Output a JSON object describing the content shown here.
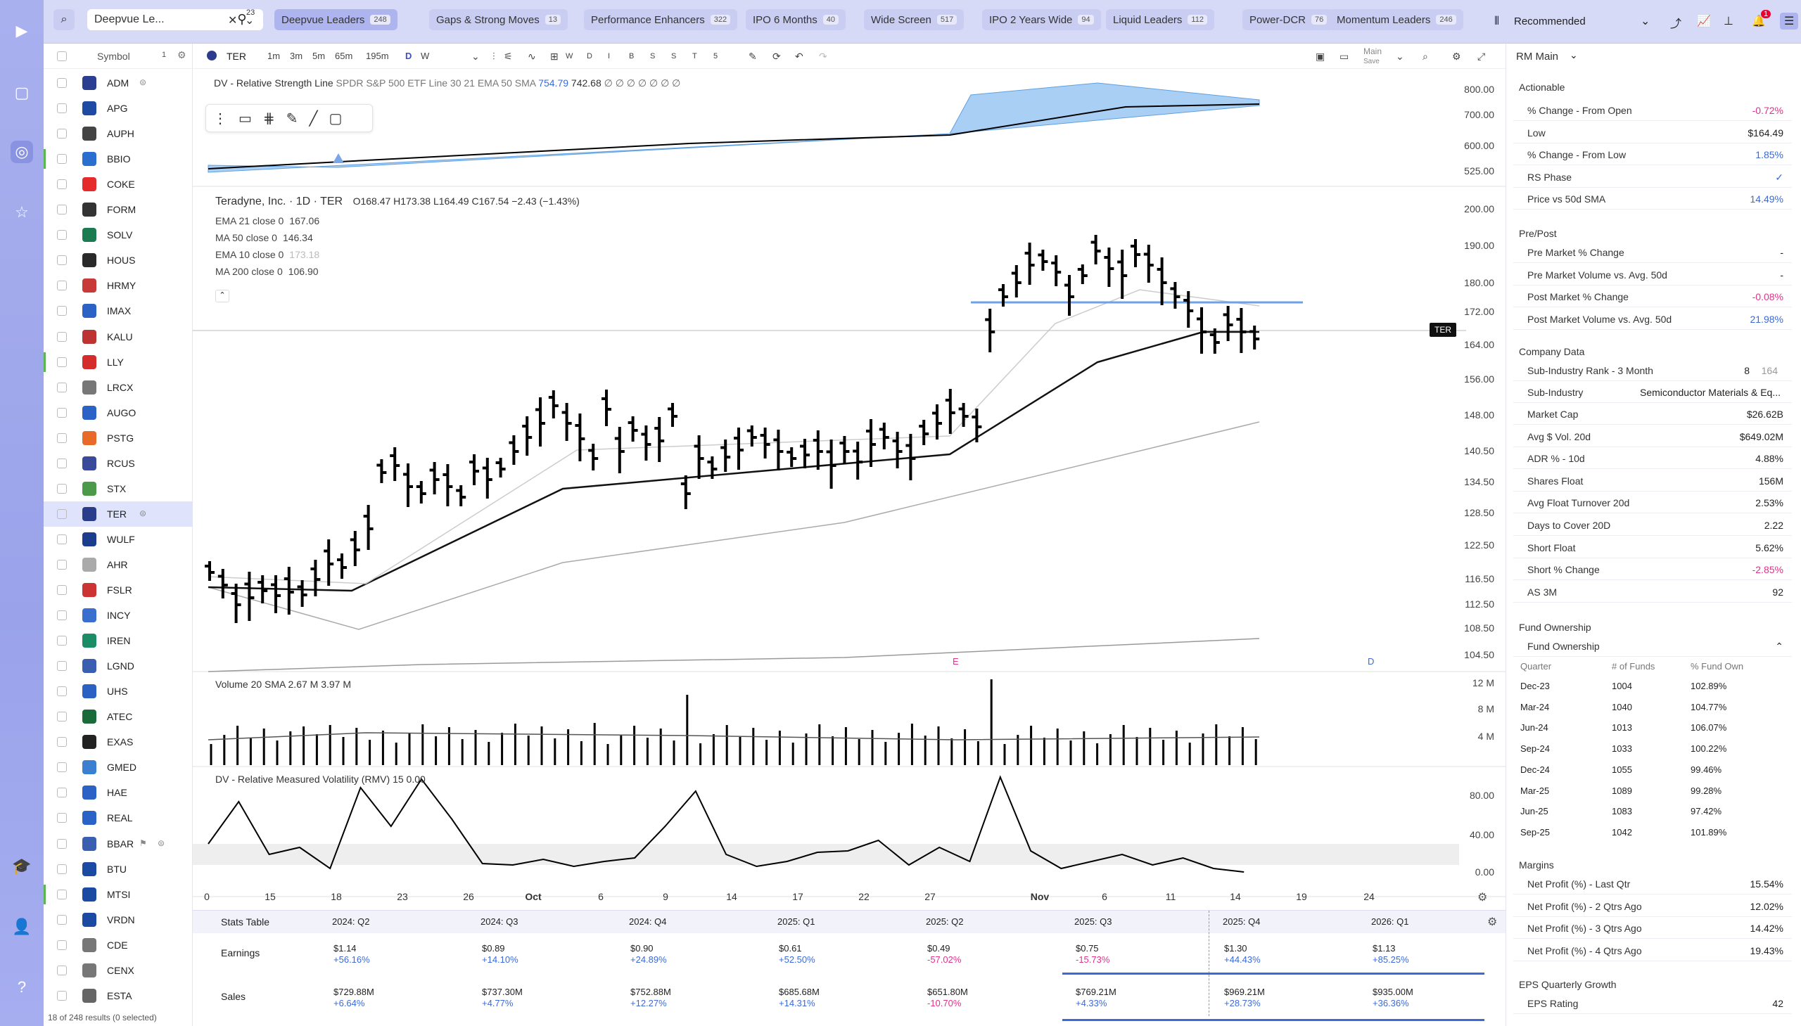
{
  "topbar": {
    "watchlist": "Deepvue Le...",
    "filter_badge": "23",
    "sort": "Recommended",
    "notif": "1",
    "tabs": [
      {
        "label": "Deepvue Leaders",
        "count": "248"
      },
      {
        "label": "Gaps & Strong Moves",
        "count": "13"
      },
      {
        "label": "Performance Enhancers",
        "count": "322"
      },
      {
        "label": "IPO 6 Months",
        "count": "40"
      },
      {
        "label": "Wide Screen",
        "count": "517"
      },
      {
        "label": "IPO 2 Years Wide",
        "count": "94"
      },
      {
        "label": "Liquid Leaders",
        "count": "112"
      },
      {
        "label": "Power-DCR",
        "count": "76"
      },
      {
        "label": "Momentum Leaders",
        "count": "246"
      }
    ]
  },
  "watchlist": {
    "col": "Symbol",
    "col_count": "1",
    "footer": "18 of 248 results (0 selected)",
    "symbols": [
      "ADM",
      "APG",
      "AUPH",
      "BBIO",
      "COKE",
      "FORM",
      "SOLV",
      "HOUS",
      "HRMY",
      "IMAX",
      "KALU",
      "LLY",
      "LRCX",
      "AUGO",
      "PSTG",
      "RCUS",
      "STX",
      "TER",
      "WULF",
      "AHR",
      "FSLR",
      "INCY",
      "IREN",
      "LGND",
      "UHS",
      "ATEC",
      "EXAS",
      "GMED",
      "HAE",
      "REAL",
      "BBAR",
      "BTU",
      "MTSI",
      "VRDN",
      "CDE",
      "CENX",
      "ESTA"
    ]
  },
  "toolbar": {
    "symbol": "TER",
    "intervals": [
      "1m",
      "3m",
      "5m",
      "65m",
      "195m",
      "D",
      "W"
    ],
    "letters": [
      "W",
      "D",
      "I",
      "B",
      "S",
      "S",
      "T",
      "5"
    ],
    "layout": "Main",
    "save": "Save"
  },
  "chart": {
    "rs_line": {
      "label": "DV - Relative Strength Line",
      "desc": "SPDR S&P 500 ETF Line 30 21 EMA 50 SMA",
      "v1": "754.79",
      "v2": "742.68",
      "extra": "∅ ∅ ∅ ∅ ∅ ∅ ∅",
      "axis": [
        "800.00",
        "700.00",
        "600.00",
        "525.00"
      ]
    },
    "title": "Teradyne, Inc. · 1D · TER",
    "ohlc": "O168.47  H173.38  L164.49  C167.54  −2.43 (−1.43%)",
    "mas": [
      {
        "name": "EMA 21 close 0",
        "val": "167.06"
      },
      {
        "name": "MA 50 close 0",
        "val": "146.34"
      },
      {
        "name": "EMA 10 close 0",
        "val": "173.18"
      },
      {
        "name": "MA 200 close 0",
        "val": "106.90"
      }
    ],
    "price_axis": [
      "200.00",
      "190.00",
      "180.00",
      "172.00",
      "164.00",
      "156.00",
      "148.00",
      "140.50",
      "134.50",
      "128.50",
      "122.50",
      "116.50",
      "112.50",
      "108.50",
      "104.50"
    ],
    "tag": "TER",
    "earn_marker": "E",
    "div_marker": "D",
    "volume": {
      "label": "Volume 20 SMA",
      "v1": "2.67 M",
      "v2": "3.97 M",
      "axis": [
        "12 M",
        "8 M",
        "4 M"
      ]
    },
    "rmv": {
      "label": "DV - Relative Measured Volatility (RMV) 15",
      "v": "0.00",
      "axis": [
        "80.00",
        "40.00",
        "0.00"
      ]
    },
    "dates": [
      "0",
      "15",
      "18",
      "23",
      "26",
      "Oct",
      "6",
      "9",
      "14",
      "17",
      "22",
      "27",
      "Nov",
      "6",
      "11",
      "14",
      "19",
      "24"
    ]
  },
  "stats": {
    "title": "Stats Table",
    "quarters": [
      "2024: Q2",
      "2024: Q3",
      "2024: Q4",
      "2025: Q1",
      "2025: Q2",
      "2025: Q3",
      "2025: Q4",
      "2026: Q1"
    ],
    "earnings_label": "Earnings",
    "sales_label": "Sales",
    "earnings": [
      [
        "$1.14",
        "+56.16%"
      ],
      [
        "$0.89",
        "+14.10%"
      ],
      [
        "$0.90",
        "+24.89%"
      ],
      [
        "$0.61",
        "+52.50%"
      ],
      [
        "$0.49",
        "-57.02%"
      ],
      [
        "$0.75",
        "-15.73%"
      ],
      [
        "$1.30",
        "+44.43%"
      ],
      [
        "$1.13",
        "+85.25%"
      ]
    ],
    "sales": [
      [
        "$729.88M",
        "+6.64%"
      ],
      [
        "$737.30M",
        "+4.77%"
      ],
      [
        "$752.88M",
        "+12.27%"
      ],
      [
        "$685.68M",
        "+14.31%"
      ],
      [
        "$651.80M",
        "-10.70%"
      ],
      [
        "$769.21M",
        "+4.33%"
      ],
      [
        "$969.21M",
        "+28.73%"
      ],
      [
        "$935.00M",
        "+36.36%"
      ]
    ]
  },
  "panel": {
    "title": "RM Main",
    "actionable": {
      "title": "Actionable",
      "rows": [
        [
          "% Change - From Open",
          "-0.72%"
        ],
        [
          "Low",
          "$164.49"
        ],
        [
          "% Change - From Low",
          "1.85%"
        ],
        [
          "RS Phase",
          "✓"
        ],
        [
          "Price vs 50d SMA",
          "14.49%"
        ]
      ]
    },
    "prepost": {
      "title": "Pre/Post",
      "rows": [
        [
          "Pre Market % Change",
          "-"
        ],
        [
          "Pre Market Volume vs. Avg. 50d",
          "-"
        ],
        [
          "Post Market % Change",
          "-0.08%"
        ],
        [
          "Post Market Volume vs. Avg. 50d",
          "21.98%"
        ]
      ]
    },
    "company": {
      "title": "Company Data",
      "rank_label": "Sub-Industry Rank - 3 Month",
      "rank": "8",
      "rank_of": "164",
      "subind_label": "Sub-Industry",
      "subind": "Semiconductor Materials & Eq...",
      "rows": [
        [
          "Market Cap",
          "$26.62B"
        ],
        [
          "Avg $ Vol. 20d",
          "$649.02M"
        ],
        [
          "ADR % - 10d",
          "4.88%"
        ],
        [
          "Shares Float",
          "156M"
        ],
        [
          "Avg Float Turnover 20d",
          "2.53%"
        ],
        [
          "Days to Cover 20D",
          "2.22"
        ],
        [
          "Short Float",
          "5.62%"
        ],
        [
          "Short % Change",
          "-2.85%"
        ],
        [
          "AS 3M",
          "92"
        ]
      ]
    },
    "fund": {
      "title": "Fund Ownership",
      "sub": "Fund Ownership",
      "cols": [
        "Quarter",
        "# of Funds",
        "% Fund Own"
      ],
      "rows": [
        [
          "Dec-23",
          "1004",
          "102.89%"
        ],
        [
          "Mar-24",
          "1040",
          "104.77%"
        ],
        [
          "Jun-24",
          "1013",
          "106.07%"
        ],
        [
          "Sep-24",
          "1033",
          "100.22%"
        ],
        [
          "Dec-24",
          "1055",
          "99.46%"
        ],
        [
          "Mar-25",
          "1089",
          "99.28%"
        ],
        [
          "Jun-25",
          "1083",
          "97.42%"
        ],
        [
          "Sep-25",
          "1042",
          "101.89%"
        ]
      ]
    },
    "margins": {
      "title": "Margins",
      "rows": [
        [
          "Net Profit (%) - Last Qtr",
          "15.54%"
        ],
        [
          "Net Profit (%) - 2 Qtrs Ago",
          "12.02%"
        ],
        [
          "Net Profit (%) - 3 Qtrs Ago",
          "14.42%"
        ],
        [
          "Net Profit (%) - 4 Qtrs Ago",
          "19.43%"
        ]
      ]
    },
    "eps": {
      "title": "EPS Quarterly Growth",
      "rating_label": "EPS Rating",
      "rating": "42"
    }
  },
  "colors": {
    "accent": "#5b6fe0",
    "up": "#3b6ad8",
    "down": "#e0338a",
    "bg": "#b9bff0"
  }
}
